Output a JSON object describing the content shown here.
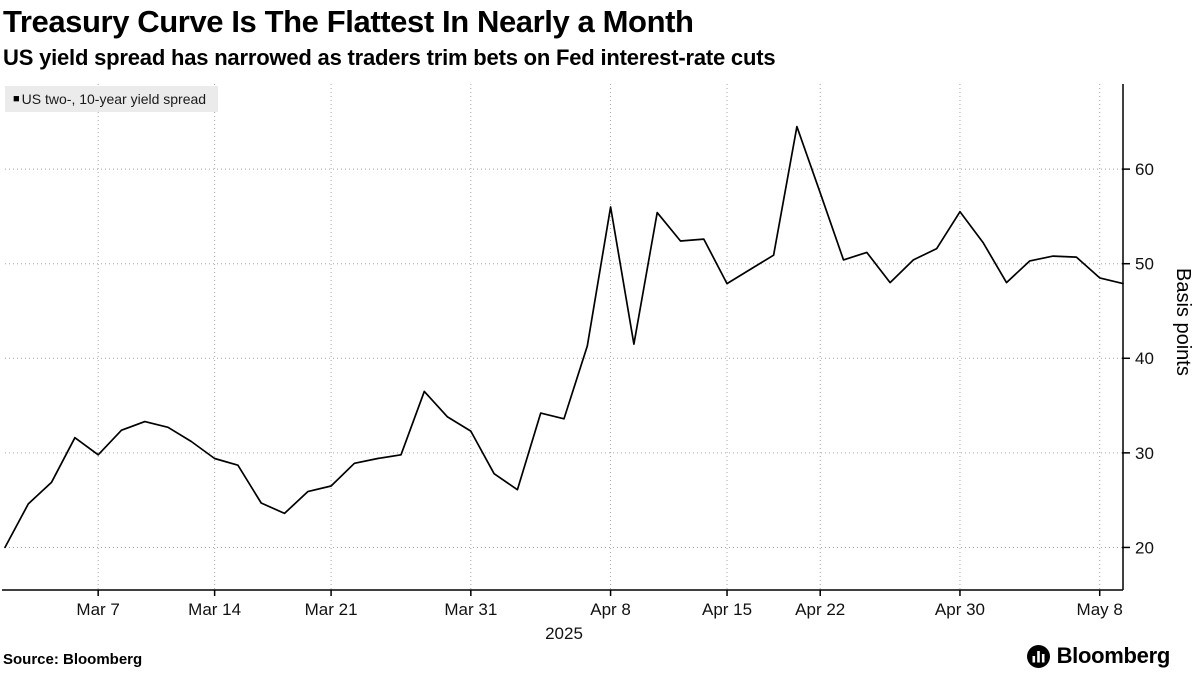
{
  "header": {
    "title": "Treasury Curve Is The Flattest In Nearly a Month",
    "subtitle": "US yield spread has narrowed as traders trim bets on Fed interest-rate cuts"
  },
  "legend": {
    "marker": "■",
    "label": "US two-, 10-year yield spread"
  },
  "footer": {
    "source": "Source: Bloomberg",
    "brand": "Bloomberg"
  },
  "chart_data": {
    "type": "line",
    "series_name": "US two-, 10-year yield spread",
    "title": "Treasury Curve Is The Flattest In Nearly a Month",
    "xlabel": "",
    "ylabel": "Basis points",
    "x_axis_year": "2025",
    "line_color": "#000000",
    "grid": "dotted",
    "grid_color": "#a6a6a6",
    "legend_position": "top-left",
    "ylim": [
      15.5,
      69
    ],
    "y_ticks": [
      20,
      30,
      40,
      50,
      60
    ],
    "x_ticks": [
      {
        "label": "Mar 7",
        "index": 4
      },
      {
        "label": "Mar 14",
        "index": 9
      },
      {
        "label": "Mar 21",
        "index": 14
      },
      {
        "label": "Mar 31",
        "index": 20
      },
      {
        "label": "Apr 8",
        "index": 26
      },
      {
        "label": "Apr 15",
        "index": 31
      },
      {
        "label": "Apr 22",
        "index": 35
      },
      {
        "label": "Apr 30",
        "index": 41
      },
      {
        "label": "May 8",
        "index": 47
      }
    ],
    "dates": [
      "Mar 3",
      "Mar 4",
      "Mar 5",
      "Mar 6",
      "Mar 7",
      "Mar 10",
      "Mar 11",
      "Mar 12",
      "Mar 13",
      "Mar 14",
      "Mar 17",
      "Mar 18",
      "Mar 19",
      "Mar 20",
      "Mar 21",
      "Mar 24",
      "Mar 25",
      "Mar 26",
      "Mar 27",
      "Mar 28",
      "Mar 31",
      "Apr 1",
      "Apr 2",
      "Apr 3",
      "Apr 4",
      "Apr 7",
      "Apr 8",
      "Apr 9",
      "Apr 10",
      "Apr 11",
      "Apr 14",
      "Apr 15",
      "Apr 16",
      "Apr 17",
      "Apr 21",
      "Apr 22",
      "Apr 23",
      "Apr 24",
      "Apr 25",
      "Apr 28",
      "Apr 29",
      "Apr 30",
      "May 1",
      "May 2",
      "May 5",
      "May 6",
      "May 7",
      "May 8",
      "May 9"
    ],
    "values": [
      20.0,
      24.6,
      26.9,
      31.6,
      29.8,
      32.4,
      33.3,
      32.7,
      31.2,
      29.4,
      28.7,
      24.7,
      23.6,
      25.9,
      26.5,
      28.9,
      29.4,
      29.8,
      36.5,
      33.8,
      32.3,
      27.8,
      26.1,
      34.2,
      33.6,
      41.3,
      56.0,
      41.5,
      55.4,
      52.4,
      52.6,
      47.9,
      49.4,
      50.9,
      64.5,
      57.5,
      50.4,
      51.2,
      48.0,
      50.4,
      51.6,
      55.5,
      52.2,
      48.0,
      50.3,
      50.8,
      50.7,
      48.5,
      47.9
    ]
  }
}
